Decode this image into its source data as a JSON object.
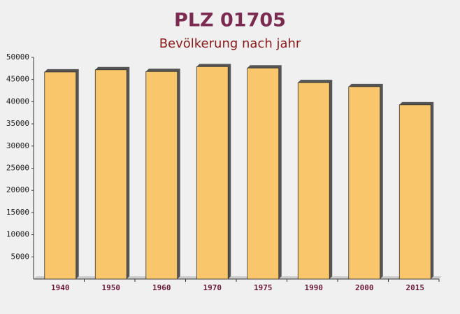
{
  "chart_data": {
    "type": "bar",
    "title": "PLZ 01705",
    "subtitle": "Bevölkerung nach jahr",
    "categories": [
      "1940",
      "1950",
      "1960",
      "1970",
      "1975",
      "1990",
      "2000",
      "2015"
    ],
    "values": [
      46700,
      47200,
      46800,
      47900,
      47600,
      44300,
      43400,
      39300
    ],
    "color": "#f9c66b",
    "ylim": [
      0,
      50000
    ],
    "yticks": [
      5000,
      10000,
      15000,
      20000,
      25000,
      30000,
      35000,
      40000,
      45000,
      50000
    ],
    "grid": false
  }
}
